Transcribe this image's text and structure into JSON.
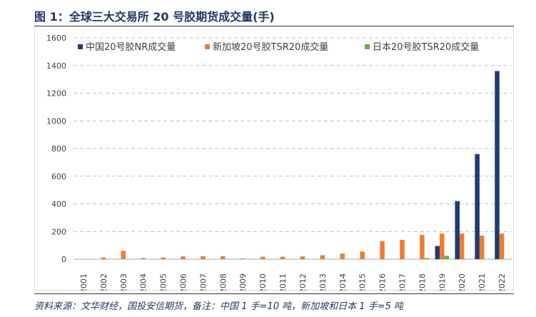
{
  "title": "图 1：全球三大交易所 20 号胶期货成交量(手)",
  "source": "资料来源：文华财经，国投安信期货，备注：中国 1 手=10 吨，新加坡和日本 1 手=5 吨",
  "chart_data": {
    "type": "bar",
    "categories": [
      "2001",
      "2002",
      "2003",
      "2004",
      "2005",
      "2006",
      "2007",
      "2008",
      "2009",
      "2010",
      "2011",
      "2012",
      "2013",
      "2014",
      "2015",
      "2016",
      "2017",
      "2018",
      "2019",
      "2020",
      "2021",
      "2022"
    ],
    "series": [
      {
        "name": "中国20号胶NR成交量",
        "color": "#1f3b73",
        "values": [
          0,
          0,
          0,
          0,
          0,
          0,
          0,
          0,
          0,
          0,
          0,
          0,
          0,
          0,
          0,
          0,
          0,
          0,
          95,
          420,
          760,
          1360
        ]
      },
      {
        "name": "新加坡20号胶TSR20成交量",
        "color": "#ed7d31",
        "values": [
          0,
          12,
          60,
          8,
          12,
          20,
          22,
          22,
          5,
          18,
          18,
          20,
          28,
          40,
          55,
          130,
          140,
          175,
          185,
          185,
          170,
          185
        ]
      },
      {
        "name": "日本20号胶TSR20成交量",
        "color": "#70ad47",
        "values": [
          0,
          0,
          0,
          0,
          0,
          0,
          0,
          0,
          0,
          0,
          0,
          0,
          0,
          0,
          0,
          0,
          0,
          8,
          25,
          0,
          0,
          0
        ]
      }
    ],
    "ylim": [
      0,
      1600
    ],
    "yticks": [
      0,
      200,
      400,
      600,
      800,
      1000,
      1200,
      1400,
      1600
    ],
    "grid": true,
    "legend_position": "top"
  }
}
